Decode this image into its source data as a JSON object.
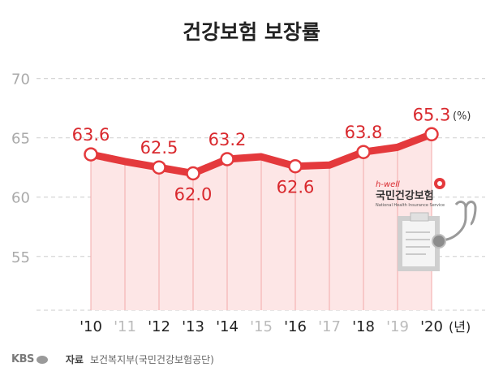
{
  "page": {
    "title": "건강보험 보장률"
  },
  "chart_data": {
    "type": "line",
    "title": "건강보험 보장률",
    "x": [
      "'10",
      "'11",
      "'12",
      "'13",
      "'14",
      "'15",
      "'16",
      "'17",
      "'18",
      "'19",
      "'20"
    ],
    "values": [
      63.6,
      63.0,
      62.5,
      62.0,
      63.2,
      63.4,
      62.6,
      62.7,
      63.8,
      64.2,
      65.3
    ],
    "labeled_points": [
      "'10",
      "'12",
      "'13",
      "'14",
      "'16",
      "'18",
      "'20"
    ],
    "y_ticks": [
      70,
      65,
      60,
      55
    ],
    "ylim": [
      53,
      71
    ],
    "x_unit": "(년)",
    "y_unit": "(%)",
    "grid": true,
    "colors": {
      "line": "#e4393c",
      "fill": "#fde6e6",
      "marker_fill": "#ffffff",
      "label": "#d9292e",
      "grid": "#d6d6d6",
      "tick_active": "#222222",
      "tick_inactive": "#bbbbbb",
      "ytick": "#aaaaaa"
    }
  },
  "logo": {
    "brand": "h-well",
    "name": "국민건강보험",
    "subtitle": "National Health Insurance Service"
  },
  "footer": {
    "broadcaster": "KBS",
    "source_label": "자료",
    "source_text": "보건복지부(국민건강보험공단)"
  }
}
